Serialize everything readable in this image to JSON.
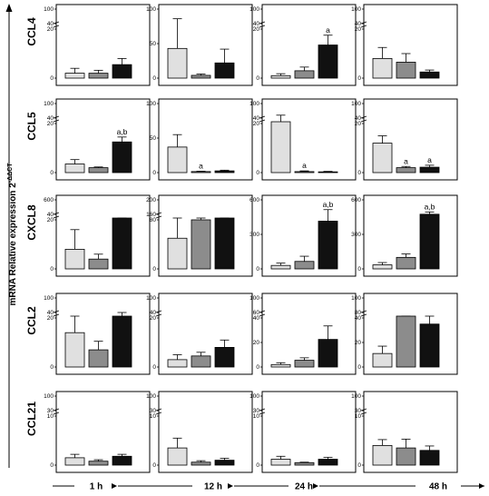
{
  "figure": {
    "y_axis_label_prefix": "mRNA Relative expression 2",
    "y_axis_label_superscript": "-ΔΔCT",
    "time_points": [
      "1 h",
      "12 h",
      "24 h",
      "48 h"
    ]
  },
  "chart_data": {
    "type": "bar",
    "bar_colors": [
      "#e0e0e0",
      "#8c8c8c",
      "#111111"
    ],
    "genes": [
      "CCL4",
      "CCL5",
      "CXCL8",
      "CCL2",
      "CCL21"
    ],
    "columns": [
      "1 h",
      "12 h",
      "24 h",
      "48 h"
    ],
    "panels": [
      {
        "gene": "CCL4",
        "time": "1 h",
        "upper_ticks": [
          "100",
          "40"
        ],
        "lower_ticks": [
          "20",
          "0"
        ],
        "break": [
          20,
          40
        ],
        "values": [
          2,
          2,
          5.5
        ],
        "errors": [
          2,
          1.2,
          2.5
        ],
        "labels": [
          "",
          "",
          ""
        ]
      },
      {
        "gene": "CCL4",
        "time": "12 h",
        "upper_ticks": [],
        "lower_ticks": [
          "100",
          "50",
          "0"
        ],
        "break": null,
        "values": [
          43,
          4,
          22
        ],
        "errors": [
          43,
          2,
          20
        ],
        "labels": [
          "",
          "",
          ""
        ]
      },
      {
        "gene": "CCL4",
        "time": "24 h",
        "upper_ticks": [
          "100",
          "40"
        ],
        "lower_ticks": [
          "20",
          "0"
        ],
        "break": [
          20,
          40
        ],
        "values": [
          1,
          3,
          13.5
        ],
        "errors": [
          0.8,
          1.5,
          4
        ],
        "labels": [
          "",
          "",
          "a"
        ]
      },
      {
        "gene": "CCL4",
        "time": "48 h",
        "upper_ticks": [
          "100",
          "40"
        ],
        "lower_ticks": [
          "20",
          "0"
        ],
        "break": [
          20,
          40
        ],
        "values": [
          8,
          6.5,
          2.5
        ],
        "errors": [
          4.5,
          3.5,
          0.8
        ],
        "labels": [
          "",
          "",
          ""
        ]
      },
      {
        "gene": "CCL5",
        "time": "1 h",
        "upper_ticks": [
          "100",
          "40"
        ],
        "lower_ticks": [
          "20",
          "0"
        ],
        "break": [
          20,
          40
        ],
        "values": [
          3.5,
          2,
          12.5
        ],
        "errors": [
          1.8,
          0.3,
          2
        ],
        "labels": [
          "",
          "",
          "a,b"
        ]
      },
      {
        "gene": "CCL5",
        "time": "12 h",
        "upper_ticks": [],
        "lower_ticks": [
          "100",
          "50",
          "0"
        ],
        "break": null,
        "values": [
          37,
          1.5,
          2.5
        ],
        "errors": [
          18,
          0.5,
          1
        ],
        "labels": [
          "",
          "a",
          ""
        ]
      },
      {
        "gene": "CCL5",
        "time": "24 h",
        "upper_ticks": [
          "100",
          "40"
        ],
        "lower_ticks": [
          "20",
          "0"
        ],
        "break": [
          20,
          40
        ],
        "values": [
          30,
          0.4,
          0.3
        ],
        "errors": [
          22,
          0.3,
          0.2
        ],
        "labels": [
          "",
          "a",
          ""
        ]
      },
      {
        "gene": "CCL5",
        "time": "48 h",
        "upper_ticks": [
          "100",
          "40"
        ],
        "lower_ticks": [
          "20",
          "0"
        ],
        "break": [
          20,
          40
        ],
        "values": [
          12,
          2,
          2.2
        ],
        "errors": [
          3,
          0.5,
          0.8
        ],
        "labels": [
          "",
          "a",
          "a"
        ]
      },
      {
        "gene": "CXCL8",
        "time": "1 h",
        "upper_ticks": [
          "600",
          "40"
        ],
        "lower_ticks": [
          "20",
          "0"
        ],
        "break": [
          40,
          600
        ],
        "values": [
          8,
          4,
          23
        ],
        "errors": [
          8,
          2,
          10
        ],
        "labels": [
          "",
          "",
          ""
        ]
      },
      {
        "gene": "CXCL8",
        "time": "12 h",
        "upper_ticks": [
          "200",
          "160"
        ],
        "lower_ticks": [
          "80",
          "0"
        ],
        "break": [
          160,
          200
        ],
        "values": [
          50,
          80,
          108
        ],
        "errors": [
          50,
          35,
          38
        ],
        "labels": [
          "",
          "",
          ""
        ]
      },
      {
        "gene": "CXCL8",
        "time": "24 h",
        "upper_ticks": [],
        "lower_ticks": [
          "600",
          "300",
          "0"
        ],
        "break": null,
        "values": [
          30,
          65,
          415
        ],
        "errors": [
          20,
          45,
          100
        ],
        "labels": [
          "",
          "",
          "a,b"
        ]
      },
      {
        "gene": "CXCL8",
        "time": "48 h",
        "upper_ticks": [],
        "lower_ticks": [
          "600",
          "300",
          "0"
        ],
        "break": null,
        "values": [
          35,
          100,
          475
        ],
        "errors": [
          20,
          30,
          20
        ],
        "labels": [
          "",
          "",
          "a,b"
        ]
      },
      {
        "gene": "CCL2",
        "time": "1 h",
        "upper_ticks": [
          "100",
          "40"
        ],
        "lower_ticks": [
          "20",
          "0"
        ],
        "break": [
          40,
          100
        ],
        "values": [
          14,
          7,
          21
        ],
        "errors": [
          14,
          3.5,
          19
        ],
        "labels": [
          "",
          "",
          ""
        ]
      },
      {
        "gene": "CCL2",
        "time": "12 h",
        "upper_ticks": [
          "100",
          "40"
        ],
        "lower_ticks": [
          "20",
          "0"
        ],
        "break": [
          40,
          100
        ],
        "values": [
          3,
          4.5,
          8
        ],
        "errors": [
          2,
          1.5,
          3
        ],
        "labels": [
          "",
          "",
          ""
        ]
      },
      {
        "gene": "CCL2",
        "time": "24 h",
        "upper_ticks": [
          "100",
          "60"
        ],
        "lower_ticks": [
          "40",
          "20",
          "0"
        ],
        "break": [
          40,
          60
        ],
        "values": [
          2,
          5.5,
          22.5
        ],
        "errors": [
          1.5,
          2,
          11
        ],
        "labels": [
          "",
          "",
          ""
        ]
      },
      {
        "gene": "CCL2",
        "time": "48 h",
        "upper_ticks": [
          "100",
          "80"
        ],
        "lower_ticks": [
          "40",
          "20",
          "0"
        ],
        "break": [
          40,
          80
        ],
        "values": [
          11,
          45,
          35
        ],
        "errors": [
          6,
          25,
          6
        ],
        "labels": [
          "",
          "",
          ""
        ]
      },
      {
        "gene": "CCL21",
        "time": "1 h",
        "upper_ticks": [
          "100",
          "30"
        ],
        "lower_ticks": [
          "10",
          "0"
        ],
        "break": [
          10,
          30
        ],
        "values": [
          1.5,
          0.8,
          1.8
        ],
        "errors": [
          0.7,
          0.3,
          0.4
        ],
        "labels": [
          "",
          "",
          ""
        ]
      },
      {
        "gene": "CCL21",
        "time": "12 h",
        "upper_ticks": [
          "100",
          "30"
        ],
        "lower_ticks": [
          "10",
          "0"
        ],
        "break": [
          10,
          30
        ],
        "values": [
          3.5,
          0.6,
          1
        ],
        "errors": [
          2,
          0.3,
          0.4
        ],
        "labels": [
          "",
          "",
          ""
        ]
      },
      {
        "gene": "CCL21",
        "time": "24 h",
        "upper_ticks": [
          "100",
          "30"
        ],
        "lower_ticks": [
          "10",
          "0"
        ],
        "break": [
          10,
          30
        ],
        "values": [
          1.2,
          0.5,
          1.2
        ],
        "errors": [
          0.6,
          0.1,
          0.4
        ],
        "labels": [
          "",
          "",
          ""
        ]
      },
      {
        "gene": "CCL21",
        "time": "48 h",
        "upper_ticks": [
          "100",
          "30"
        ],
        "lower_ticks": [
          "10",
          "0"
        ],
        "break": [
          10,
          30
        ],
        "values": [
          4,
          3.5,
          3
        ],
        "errors": [
          1.2,
          1.8,
          0.9
        ],
        "labels": [
          "",
          "",
          ""
        ]
      }
    ]
  }
}
